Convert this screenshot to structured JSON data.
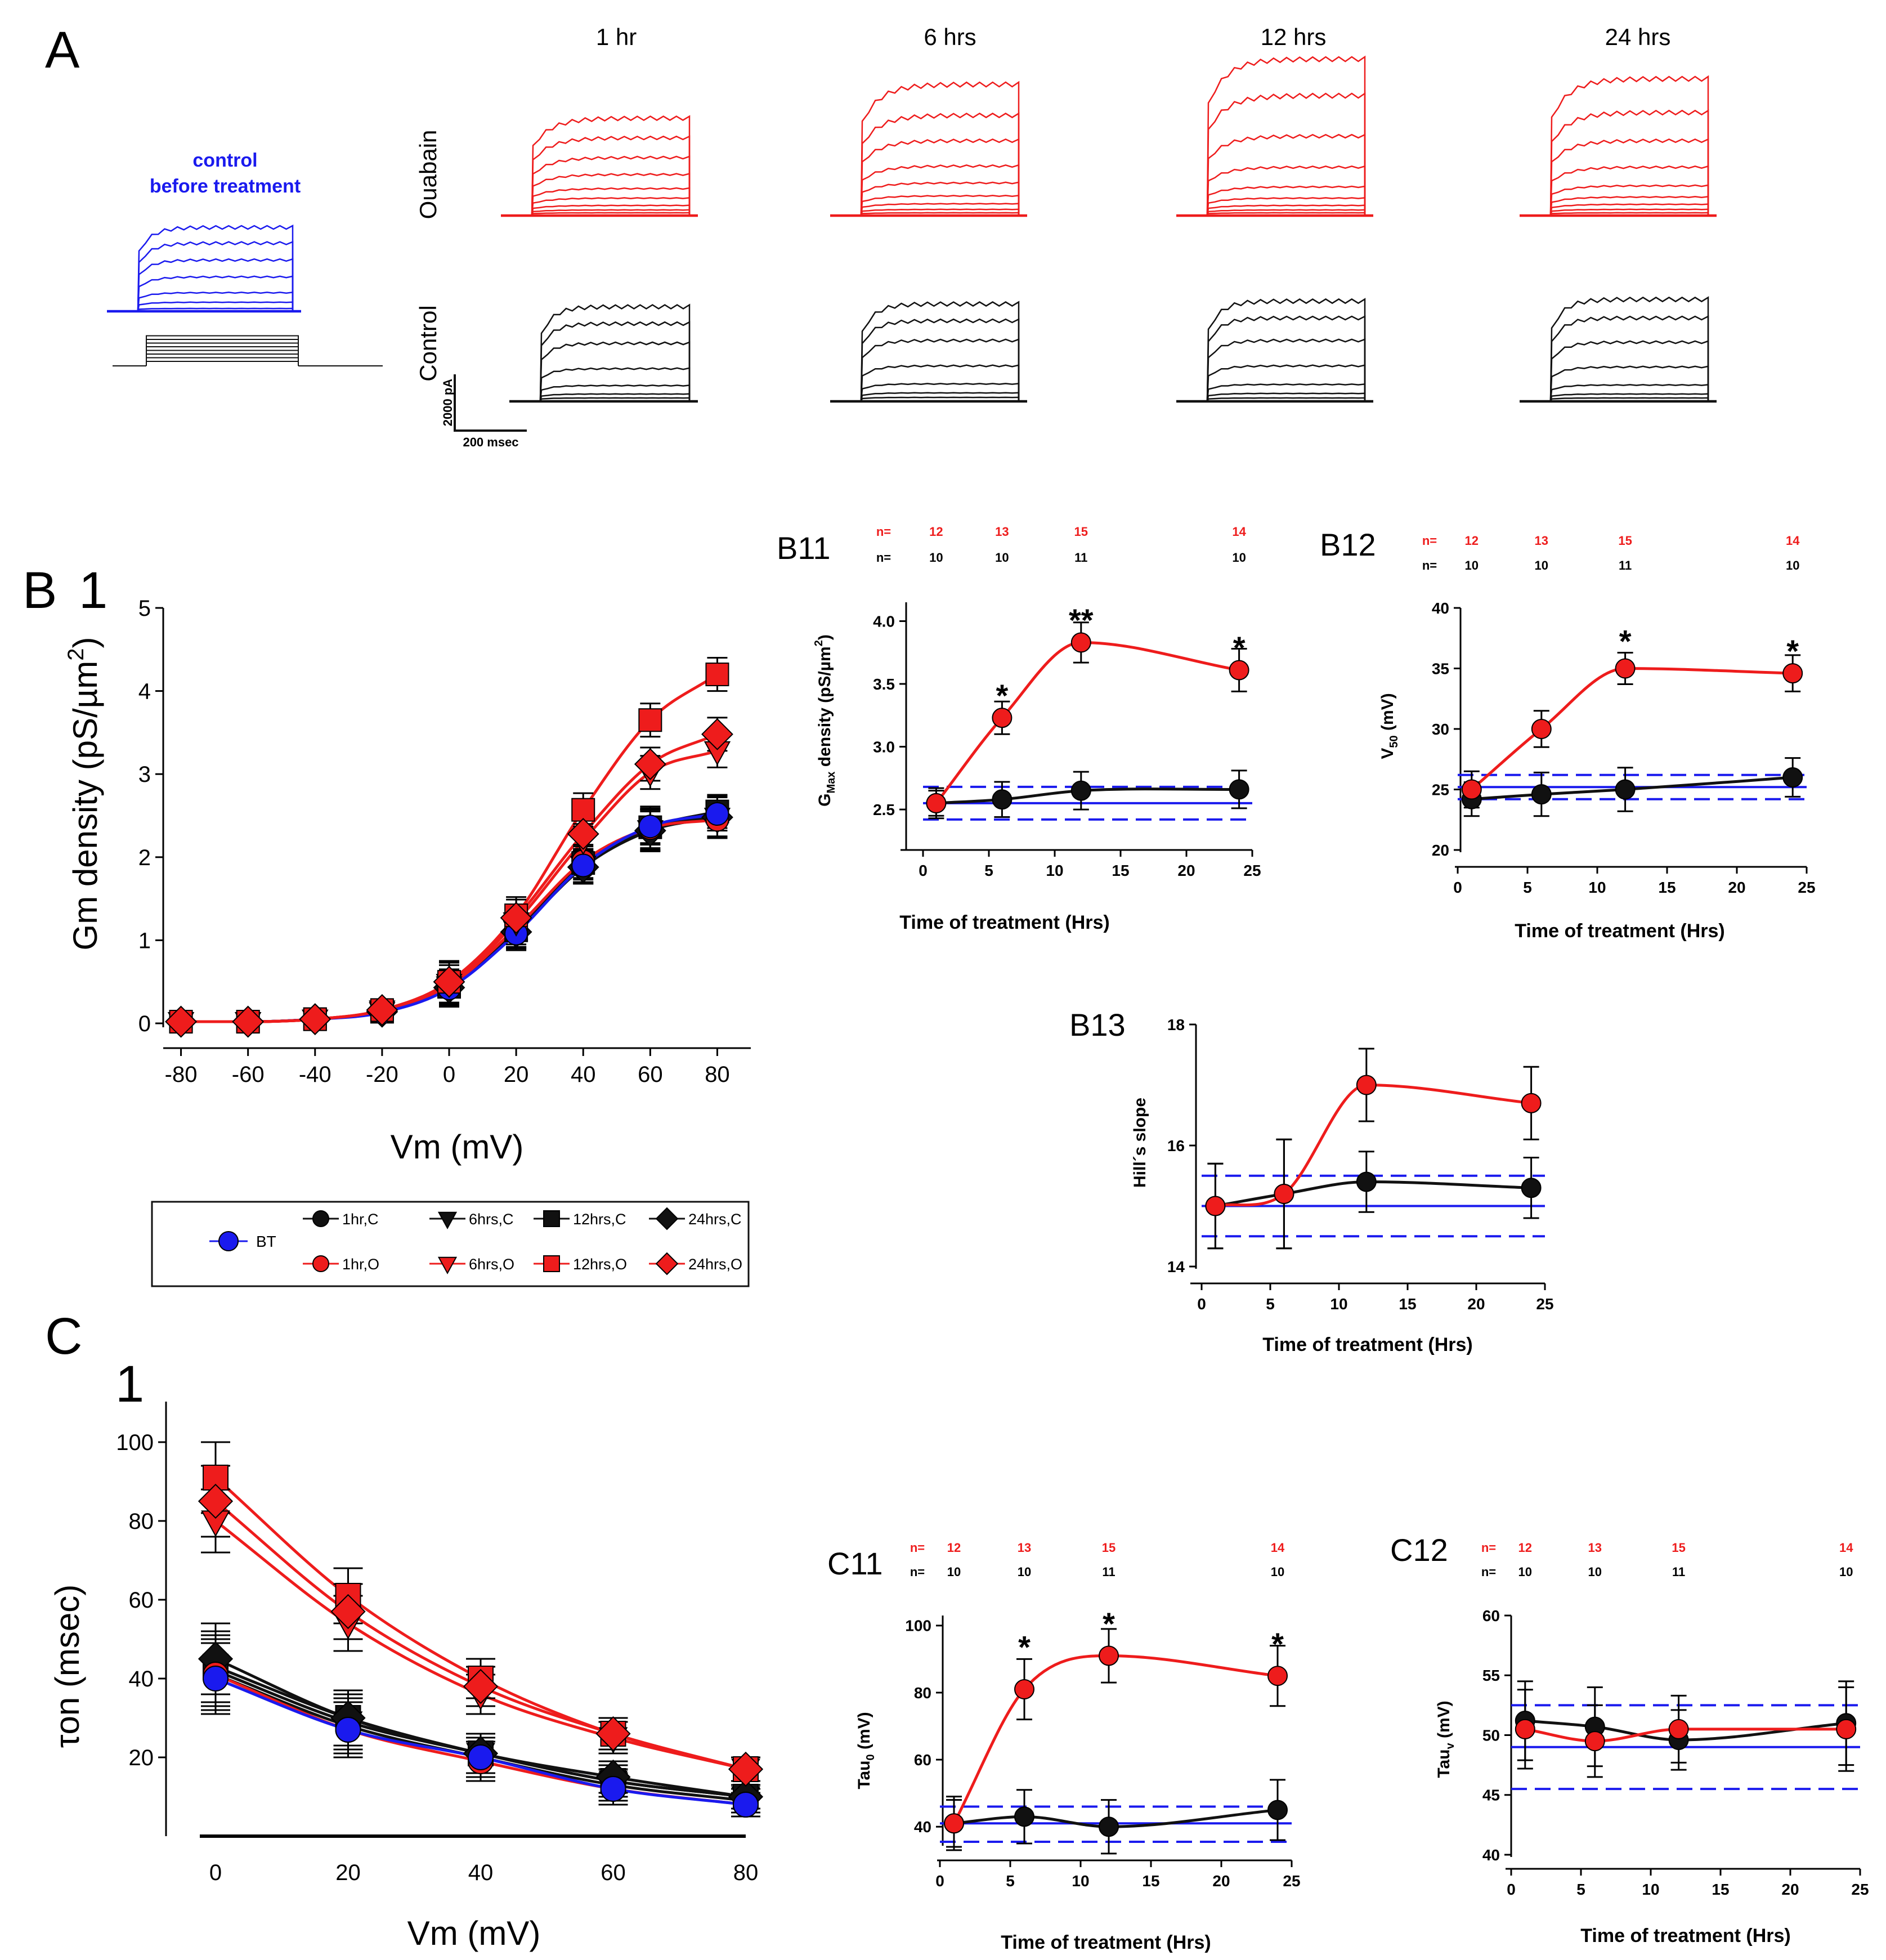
{
  "colors": {
    "ouabain": "#ee1c1c",
    "control": "#111111",
    "bt": "#1a1aee"
  },
  "panelA": {
    "label": "A",
    "times": [
      "1 hr",
      "6 hrs",
      "12 hrs",
      "24 hrs"
    ],
    "control_label_line1": "control",
    "control_label_line2": "before treatment",
    "row_ouabain": "Ouabain",
    "row_control": "Control",
    "scale_y": "2000 pA",
    "scale_x": "200 msec"
  },
  "legend": {
    "bt": "BT",
    "items": [
      "1hr,C",
      "6hrs,C",
      "12hrs,C",
      "24hrs,C",
      "1hr,O",
      "6hrs,O",
      "12hrs,O",
      "24hrs,O"
    ]
  },
  "chart_data": [
    {
      "id": "B1",
      "type": "line",
      "panel_label": "B",
      "panel_number": "1",
      "xlabel": "Vm (mV)",
      "ylabel": "Gm density (pS/µm",
      "ylabel_sup": "2",
      "ylabel_tail": ")",
      "xlim": [
        -90,
        90
      ],
      "ylim": [
        0,
        5
      ],
      "xticks": [
        -80,
        -60,
        -40,
        -20,
        0,
        20,
        40,
        60,
        80
      ],
      "yticks": [
        0,
        1,
        2,
        3,
        4,
        5
      ],
      "x": [
        -80,
        -60,
        -40,
        -20,
        0,
        20,
        40,
        60,
        80
      ],
      "series": [
        {
          "name": "BT",
          "color": "blue",
          "marker": "circle",
          "values": [
            0.02,
            0.02,
            0.05,
            0.13,
            0.42,
            1.08,
            1.9,
            2.37,
            2.52
          ],
          "err": [
            0.05,
            0.05,
            0.06,
            0.1,
            0.2,
            0.2,
            0.2,
            0.2,
            0.2
          ]
        },
        {
          "name": "1hr,C",
          "color": "black",
          "marker": "circle",
          "values": [
            0.02,
            0.02,
            0.05,
            0.14,
            0.44,
            1.1,
            1.88,
            2.34,
            2.5
          ],
          "err": [
            0.05,
            0.05,
            0.06,
            0.1,
            0.2,
            0.2,
            0.2,
            0.25,
            0.25
          ]
        },
        {
          "name": "6hrs,C",
          "color": "black",
          "marker": "triangle-down",
          "values": [
            0.02,
            0.02,
            0.05,
            0.14,
            0.45,
            1.12,
            1.9,
            2.33,
            2.48
          ],
          "err": [
            0.05,
            0.05,
            0.06,
            0.1,
            0.2,
            0.2,
            0.2,
            0.25,
            0.25
          ]
        },
        {
          "name": "12hrs,C",
          "color": "black",
          "marker": "square",
          "values": [
            0.02,
            0.02,
            0.05,
            0.14,
            0.44,
            1.12,
            1.93,
            2.36,
            2.55
          ],
          "err": [
            0.05,
            0.05,
            0.06,
            0.1,
            0.2,
            0.2,
            0.2,
            0.25,
            0.2
          ]
        },
        {
          "name": "24hrs,C",
          "color": "black",
          "marker": "diamond",
          "values": [
            0.02,
            0.02,
            0.05,
            0.14,
            0.43,
            1.1,
            1.88,
            2.32,
            2.48
          ],
          "err": [
            0.05,
            0.05,
            0.06,
            0.1,
            0.2,
            0.2,
            0.2,
            0.25,
            0.25
          ]
        },
        {
          "name": "1hr,O",
          "color": "red",
          "marker": "circle",
          "values": [
            0.02,
            0.02,
            0.05,
            0.15,
            0.45,
            1.15,
            1.95,
            2.35,
            2.45
          ],
          "err": [
            0.05,
            0.05,
            0.06,
            0.1,
            0.25,
            0.2,
            0.2,
            0.2,
            0.2
          ]
        },
        {
          "name": "6hrs,O",
          "color": "red",
          "marker": "triangle-down",
          "values": [
            0.02,
            0.02,
            0.05,
            0.16,
            0.48,
            1.22,
            2.2,
            3.02,
            3.28
          ],
          "err": [
            0.05,
            0.05,
            0.06,
            0.1,
            0.25,
            0.2,
            0.2,
            0.2,
            0.2
          ]
        },
        {
          "name": "12hrs,O",
          "color": "red",
          "marker": "square",
          "values": [
            0.02,
            0.02,
            0.05,
            0.16,
            0.5,
            1.3,
            2.57,
            3.65,
            4.2
          ],
          "err": [
            0.05,
            0.05,
            0.06,
            0.1,
            0.25,
            0.22,
            0.2,
            0.2,
            0.2
          ]
        },
        {
          "name": "24hrs,O",
          "color": "red",
          "marker": "diamond",
          "values": [
            0.02,
            0.02,
            0.05,
            0.16,
            0.5,
            1.27,
            2.28,
            3.12,
            3.48
          ],
          "err": [
            0.05,
            0.05,
            0.06,
            0.1,
            0.25,
            0.22,
            0.2,
            0.2,
            0.2
          ]
        }
      ]
    },
    {
      "id": "B11",
      "type": "line",
      "panel_label": "B11",
      "xlabel": "Time of treatment (Hrs)",
      "ylabel": "G",
      "ylabel_sub": "Max",
      "ylabel_tail": "  density  (pS/µm",
      "ylabel_sup": "2",
      "ylabel_end": ")",
      "xlim": [
        0,
        25
      ],
      "ylim": [
        2.2,
        4.15
      ],
      "xticks": [
        0,
        5,
        10,
        15,
        20,
        25
      ],
      "yticks": [
        2.5,
        3.0,
        3.5,
        4.0
      ],
      "ytick_labels": [
        "2.5",
        "3.0",
        "3.5",
        "4.0"
      ],
      "x": [
        1,
        6,
        12,
        24
      ],
      "n_label": "n=",
      "n_ouabain": [
        "12",
        "13",
        "15",
        "14"
      ],
      "n_control": [
        "10",
        "10",
        "11",
        "10"
      ],
      "series": [
        {
          "name": "Ouabain",
          "color": "red",
          "values": [
            2.55,
            3.23,
            3.83,
            3.61
          ],
          "err": [
            0.1,
            0.13,
            0.16,
            0.17
          ]
        },
        {
          "name": "Control",
          "color": "black",
          "values": [
            2.55,
            2.58,
            2.65,
            2.66
          ],
          "err": [
            0.12,
            0.14,
            0.15,
            0.15
          ]
        }
      ],
      "bt_mean": 2.55,
      "bt_band": [
        2.42,
        2.68
      ],
      "significance": [
        {
          "x": 6,
          "label": "*",
          "y": 3.5
        },
        {
          "x": 12,
          "label": "**",
          "y": 4.1
        },
        {
          "x": 24,
          "label": "*",
          "y": 3.88
        }
      ]
    },
    {
      "id": "B12",
      "type": "line",
      "panel_label": "B12",
      "xlabel": "Time of treatment (Hrs)",
      "ylabel": "V",
      "ylabel_sub": "50",
      "ylabel_tail": "  (mV)",
      "xlim": [
        0,
        25
      ],
      "ylim": [
        20,
        40
      ],
      "xticks": [
        0,
        5,
        10,
        15,
        20,
        25
      ],
      "yticks": [
        20,
        25,
        30,
        35,
        40
      ],
      "ytick_labels": [
        "20",
        "25",
        "30",
        "35",
        "40"
      ],
      "x": [
        1,
        6,
        12,
        24
      ],
      "n_label": "n=",
      "n_ouabain": [
        "12",
        "13",
        "15",
        "14"
      ],
      "n_control": [
        "10",
        "10",
        "11",
        "10"
      ],
      "series": [
        {
          "name": "Ouabain",
          "color": "red",
          "values": [
            25.0,
            30.0,
            35.0,
            34.6
          ],
          "err": [
            1.5,
            1.5,
            1.3,
            1.5
          ]
        },
        {
          "name": "Control",
          "color": "black",
          "values": [
            24.2,
            24.6,
            25.0,
            26.0
          ],
          "err": [
            1.4,
            1.8,
            1.8,
            1.6
          ]
        }
      ],
      "bt_mean": 25.2,
      "bt_band": [
        24.2,
        26.2
      ],
      "significance": [
        {
          "x": 12,
          "label": "*",
          "y": 38.2
        },
        {
          "x": 24,
          "label": "*",
          "y": 37.4
        }
      ]
    },
    {
      "id": "B13",
      "type": "line",
      "panel_label": "B13",
      "xlabel": "Time of treatment (Hrs)",
      "ylabel": "Hill´s slope",
      "xlim": [
        0,
        25
      ],
      "ylim": [
        14,
        18
      ],
      "xticks": [
        0,
        5,
        10,
        15,
        20,
        25
      ],
      "yticks": [
        14,
        16,
        18
      ],
      "ytick_labels": [
        "14",
        "16",
        "18"
      ],
      "x": [
        1,
        6,
        12,
        24
      ],
      "series": [
        {
          "name": "Ouabain",
          "color": "red",
          "values": [
            15.0,
            15.2,
            17.0,
            16.7
          ],
          "err": [
            0.7,
            0.9,
            0.6,
            0.6
          ]
        },
        {
          "name": "Control",
          "color": "black",
          "values": [
            15.0,
            15.2,
            15.4,
            15.3
          ],
          "err": [
            0.7,
            0.9,
            0.5,
            0.5
          ]
        }
      ],
      "bt_mean": 15.0,
      "bt_band": [
        14.5,
        15.5
      ]
    },
    {
      "id": "C1",
      "type": "line",
      "panel_label": "C",
      "panel_number": "1",
      "xlabel": "Vm (mV)",
      "ylabel": "τon   (msec)",
      "xlim": [
        -5,
        85
      ],
      "ylim": [
        0,
        110
      ],
      "xticks": [
        0,
        20,
        40,
        60,
        80
      ],
      "yticks": [
        20,
        40,
        60,
        80,
        100
      ],
      "x": [
        0,
        20,
        40,
        60,
        80
      ],
      "series": [
        {
          "name": "BT",
          "color": "blue",
          "marker": "circle",
          "values": [
            40,
            27,
            20,
            12,
            8
          ],
          "err": [
            9,
            7,
            5,
            4,
            3
          ]
        },
        {
          "name": "1hr,C",
          "color": "black",
          "marker": "circle",
          "values": [
            41,
            28,
            20,
            13,
            9
          ],
          "err": [
            9,
            7,
            5,
            4,
            3
          ]
        },
        {
          "name": "6hrs,C",
          "color": "black",
          "marker": "triangle-down",
          "values": [
            42,
            29,
            21,
            14,
            10
          ],
          "err": [
            9,
            7,
            5,
            4,
            3
          ]
        },
        {
          "name": "12hrs,C",
          "color": "black",
          "marker": "square",
          "values": [
            43,
            30,
            21,
            14,
            10
          ],
          "err": [
            9,
            7,
            5,
            4,
            3
          ]
        },
        {
          "name": "24hrs,C",
          "color": "black",
          "marker": "diamond",
          "values": [
            45,
            30,
            21,
            15,
            10
          ],
          "err": [
            9,
            7,
            5,
            4,
            3
          ]
        },
        {
          "name": "1hr,O",
          "color": "red",
          "marker": "circle",
          "values": [
            41,
            27,
            19,
            12,
            8
          ],
          "err": [
            9,
            7,
            5,
            4,
            3
          ]
        },
        {
          "name": "6hrs,O",
          "color": "red",
          "marker": "triangle-down",
          "values": [
            80,
            54,
            36,
            25,
            17
          ],
          "err": [
            8,
            7,
            5,
            4,
            3
          ]
        },
        {
          "name": "12hrs,O",
          "color": "red",
          "marker": "square",
          "values": [
            91,
            61,
            40,
            26,
            17
          ],
          "err": [
            9,
            7,
            5,
            4,
            3
          ]
        },
        {
          "name": "24hrs,O",
          "color": "red",
          "marker": "diamond",
          "values": [
            85,
            57,
            38,
            26,
            17
          ],
          "err": [
            9,
            7,
            5,
            4,
            3
          ]
        }
      ]
    },
    {
      "id": "C11",
      "type": "line",
      "panel_label": "C11",
      "xlabel": "Time of treatment (Hrs)",
      "ylabel": "Tau",
      "ylabel_sub": "0",
      "ylabel_tail": " (mV)",
      "xlim": [
        0,
        25
      ],
      "ylim": [
        35,
        103
      ],
      "xticks": [
        0,
        5,
        10,
        15,
        20,
        25
      ],
      "yticks": [
        40,
        60,
        80,
        100
      ],
      "ytick_labels": [
        "40",
        "60",
        "80",
        "100"
      ],
      "x": [
        1,
        6,
        12,
        24
      ],
      "n_label": "n=",
      "n_ouabain": [
        "12",
        "13",
        "15",
        "14"
      ],
      "n_control": [
        "10",
        "10",
        "11",
        "10"
      ],
      "series": [
        {
          "name": "Ouabain",
          "color": "red",
          "values": [
            41,
            81,
            91,
            85
          ],
          "err": [
            8,
            9,
            8,
            9
          ]
        },
        {
          "name": "Control",
          "color": "black",
          "values": [
            41,
            43,
            40,
            45
          ],
          "err": [
            7,
            8,
            8,
            9
          ]
        }
      ],
      "bt_mean": 41,
      "bt_band": [
        35.5,
        46
      ],
      "significance": [
        {
          "x": 6,
          "label": "*",
          "y": 97
        },
        {
          "x": 12,
          "label": "*",
          "y": 104
        },
        {
          "x": 24,
          "label": "*",
          "y": 98
        }
      ]
    },
    {
      "id": "C12",
      "type": "line",
      "panel_label": "C12",
      "xlabel": "Time of treatment (Hrs)",
      "ylabel": "Tau",
      "ylabel_sub": "v",
      "ylabel_tail": " (mV)",
      "xlim": [
        0,
        25
      ],
      "ylim": [
        40,
        60
      ],
      "xticks": [
        0,
        5,
        10,
        15,
        20,
        25
      ],
      "yticks": [
        40,
        45,
        50,
        55,
        60
      ],
      "ytick_labels": [
        "40",
        "45",
        "50",
        "55",
        "60"
      ],
      "x": [
        1,
        6,
        12,
        24
      ],
      "n_label": "n=",
      "n_ouabain": [
        "12",
        "13",
        "15",
        "14"
      ],
      "n_control": [
        "10",
        "10",
        "11",
        "10"
      ],
      "series": [
        {
          "name": "Ouabain",
          "color": "red",
          "values": [
            50.5,
            49.5,
            50.5,
            50.5
          ],
          "err": [
            3.3,
            3.0,
            2.8,
            3.5
          ]
        },
        {
          "name": "Control",
          "color": "black",
          "values": [
            51.2,
            50.7,
            49.6,
            51.0
          ],
          "err": [
            3.3,
            3.3,
            2.5,
            3.5
          ]
        }
      ],
      "bt_mean": 49.0,
      "bt_band": [
        45.5,
        52.5
      ]
    }
  ]
}
